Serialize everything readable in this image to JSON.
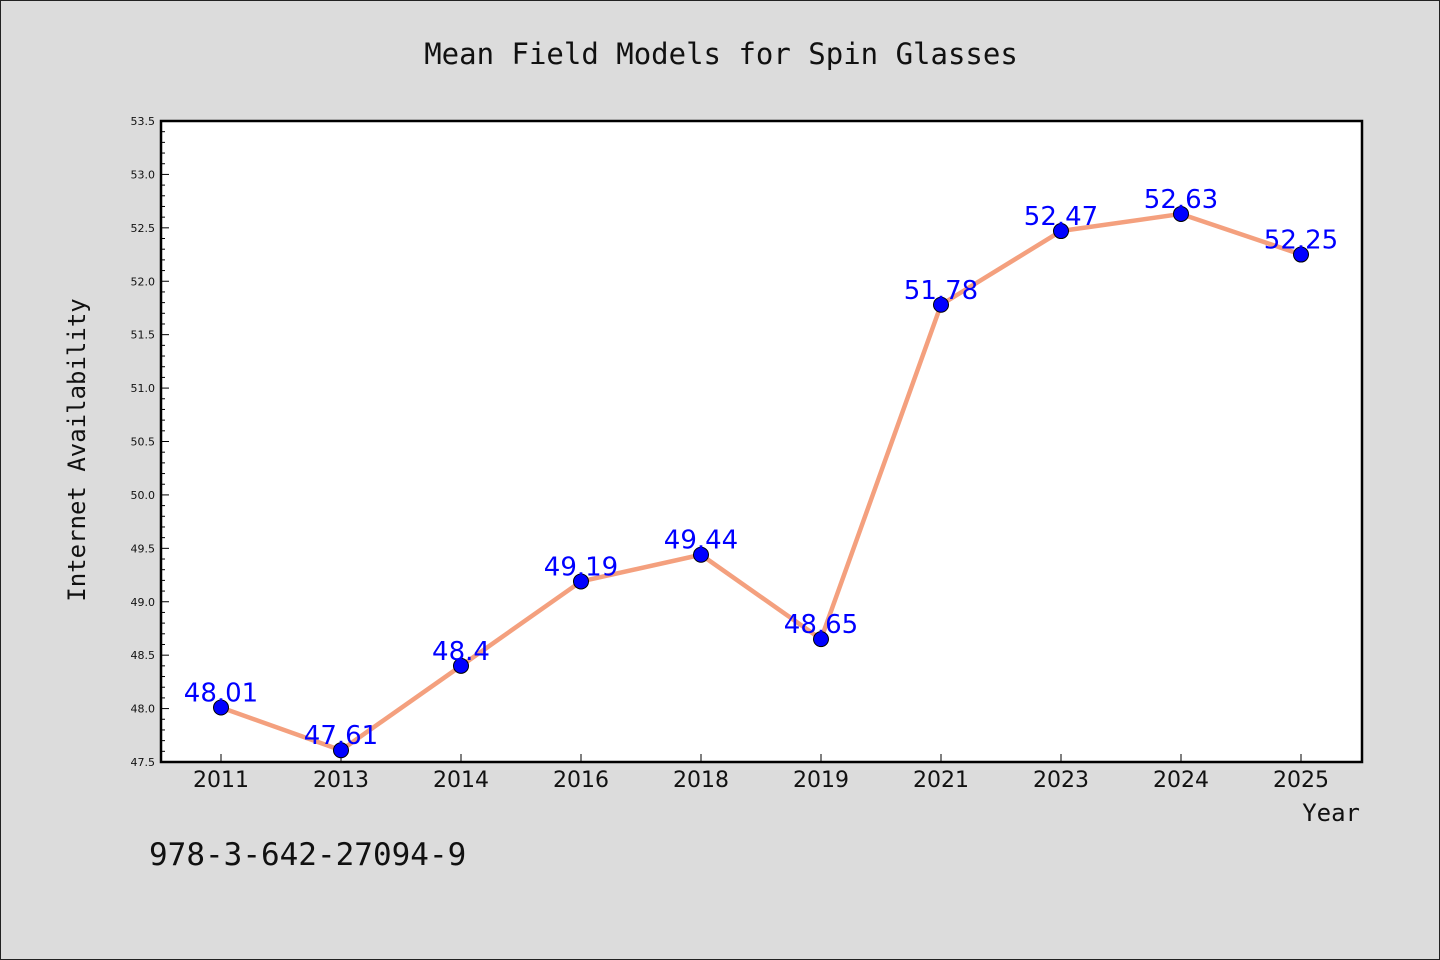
{
  "chart_data": {
    "type": "line",
    "title": "Mean Field Models for Spin Glasses",
    "xlabel": "Year",
    "ylabel": "Internet Availability",
    "categories": [
      "2011",
      "2013",
      "2014",
      "2016",
      "2018",
      "2019",
      "2021",
      "2023",
      "2024",
      "2025"
    ],
    "series": [
      {
        "values": [
          48.01,
          47.61,
          48.4,
          49.19,
          49.44,
          48.65,
          51.78,
          52.47,
          52.63,
          52.25
        ],
        "labels": [
          "48.01",
          "47.61",
          "48.4",
          "49.19",
          "49.44",
          "48.65",
          "51.78",
          "52.47",
          "52.63",
          "52.25"
        ],
        "line_color": "#f4a07e",
        "marker_color": "#0000ff",
        "label_color": "#0000ff"
      }
    ],
    "ylim": [
      47.5,
      53.5
    ],
    "yticks": [
      "47.5",
      "48.0",
      "48.5",
      "49.0",
      "49.5",
      "50.0",
      "50.5",
      "51.0",
      "51.5",
      "52.0",
      "52.5",
      "53.0",
      "53.5"
    ],
    "grid": false,
    "legend": "none"
  },
  "footnote": "978-3-642-27094-9",
  "colors": {
    "background": "#dcdcdc",
    "plot_background": "#ffffff",
    "axis": "#000000"
  }
}
